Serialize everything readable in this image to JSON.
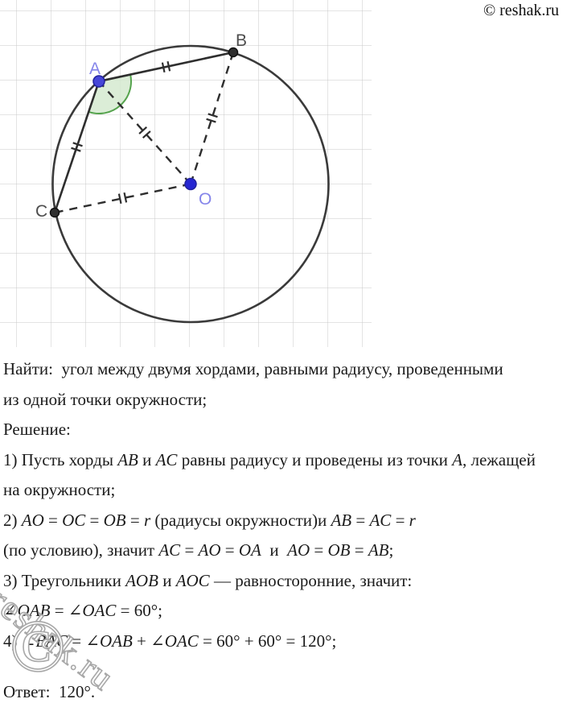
{
  "header": {
    "copyright": "© reshak.ru"
  },
  "diagram": {
    "labels": {
      "A": "A",
      "B": "B",
      "C": "C",
      "O": "O"
    },
    "colors": {
      "grid": "#c9c9c9",
      "circle": "#3a3a3a",
      "line_dark": "#2e2e2e",
      "angle_fill": "#d5ead0",
      "angle_stroke": "#55a34d",
      "point_blue_fill": "#4646d8",
      "point_blue_stroke": "#22229e",
      "center_fill": "#2626d2",
      "point_dark_fill": "#2f2f2f",
      "point_dark_stroke": "#111111",
      "label_blue": "#8585ea",
      "label_gray": "#4d4d4d"
    }
  },
  "solution": {
    "lines": [
      [
        {
          "t": "Найти:  угол между двумя хордами, равными радиусу, проведенными"
        }
      ],
      [
        {
          "t": "из одной точки окружности;"
        }
      ],
      [
        {
          "t": "Решение:"
        }
      ],
      [
        {
          "t": "1) Пусть хорды "
        },
        {
          "t": "AB",
          "i": 1
        },
        {
          "t": " и "
        },
        {
          "t": "AC",
          "i": 1
        },
        {
          "t": " равны радиусу и проведены из точки "
        },
        {
          "t": "A",
          "i": 1
        },
        {
          "t": ", лежащей"
        }
      ],
      [
        {
          "t": "на окружности;"
        }
      ],
      [
        {
          "t": "2) "
        },
        {
          "t": "AO",
          "i": 1
        },
        {
          "t": " = "
        },
        {
          "t": "OC",
          "i": 1
        },
        {
          "t": " = "
        },
        {
          "t": "OB",
          "i": 1
        },
        {
          "t": " = "
        },
        {
          "t": "r",
          "i": 1
        },
        {
          "t": " (радиусы окружности)и "
        },
        {
          "t": "AB",
          "i": 1
        },
        {
          "t": " = "
        },
        {
          "t": "AC",
          "i": 1
        },
        {
          "t": " = "
        },
        {
          "t": "r",
          "i": 1
        }
      ],
      [
        {
          "t": "(по условию), значит "
        },
        {
          "t": "AC",
          "i": 1
        },
        {
          "t": " = "
        },
        {
          "t": "AO",
          "i": 1
        },
        {
          "t": " = "
        },
        {
          "t": "OA",
          "i": 1
        },
        {
          "t": "  и  "
        },
        {
          "t": "AO",
          "i": 1
        },
        {
          "t": " = "
        },
        {
          "t": "OB",
          "i": 1
        },
        {
          "t": " = "
        },
        {
          "t": "AB",
          "i": 1
        },
        {
          "t": ";"
        }
      ],
      [
        {
          "t": "3) Треугольники "
        },
        {
          "t": "AOB",
          "i": 1
        },
        {
          "t": " и "
        },
        {
          "t": "AOC",
          "i": 1
        },
        {
          "t": " — равносторонние, значит:"
        }
      ],
      [
        {
          "t": "∠"
        },
        {
          "t": "OAB",
          "i": 1
        },
        {
          "t": " = ∠"
        },
        {
          "t": "OAC",
          "i": 1
        },
        {
          "t": " = 60°;"
        }
      ],
      [
        {
          "t": "4) ∠"
        },
        {
          "t": "BAC",
          "i": 1
        },
        {
          "t": " = ∠"
        },
        {
          "t": "OAB",
          "i": 1
        },
        {
          "t": " + ∠"
        },
        {
          "t": "OAC",
          "i": 1
        },
        {
          "t": " = 60° + 60° = 120°;"
        }
      ]
    ],
    "answer": "Ответ:  120°."
  },
  "watermark": {
    "text": "reshak.ru",
    "symbol": "©"
  }
}
